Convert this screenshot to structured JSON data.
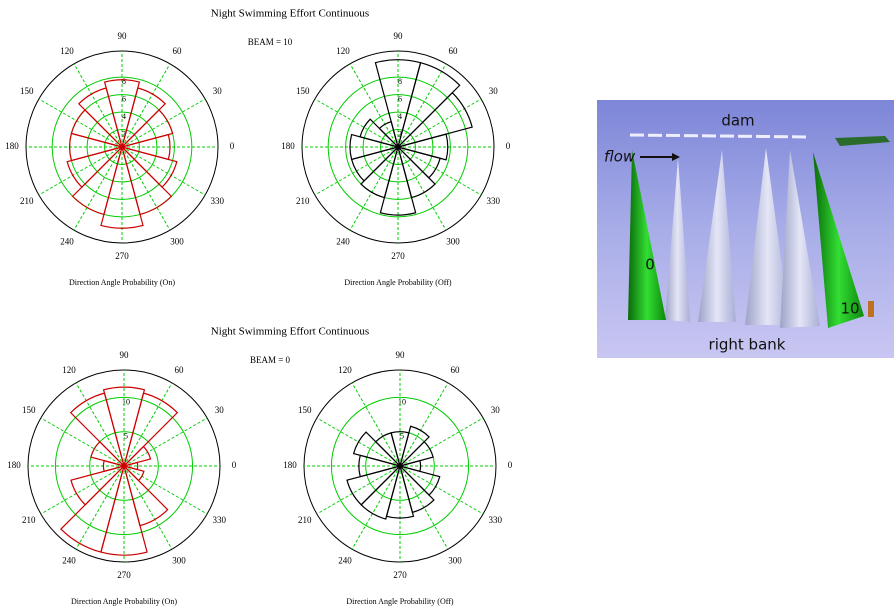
{
  "chart_data": [
    {
      "type": "polar",
      "title": "Night Swimming Effort Continuous",
      "annotation": "BEAM = 10",
      "xlabel": "Direction Angle Probability (On)",
      "color": "#cc0000",
      "grid_color": "#00cc00",
      "categories": [
        0,
        30,
        60,
        90,
        120,
        150,
        180,
        210,
        240,
        270,
        300,
        330
      ],
      "values": [
        5.5,
        6,
        7,
        7.7,
        7,
        6,
        6,
        6.5,
        8,
        9.3,
        8,
        6.5
      ],
      "rlim": [
        0,
        11
      ],
      "rticks": [
        2,
        4,
        6,
        8
      ]
    },
    {
      "type": "polar",
      "xlabel": "Direction Angle Probability (Off)",
      "color": "#000000",
      "grid_color": "#00cc00",
      "categories": [
        0,
        30,
        60,
        90,
        120,
        150,
        180,
        210,
        240,
        270,
        300,
        330
      ],
      "values": [
        5.7,
        8.8,
        10,
        10,
        3,
        4.5,
        5.5,
        5.5,
        6,
        7.8,
        6,
        5
      ],
      "rlim": [
        0,
        11
      ],
      "rticks": [
        2,
        4,
        6,
        8
      ]
    },
    {
      "type": "polar",
      "title": "Night Swimming Effort Continuous",
      "annotation": "BEAM = 0",
      "xlabel": "Direction Angle Probability (On)",
      "color": "#cc0000",
      "grid_color": "#00cc00",
      "categories": [
        0,
        30,
        60,
        90,
        120,
        150,
        180,
        210,
        240,
        270,
        300,
        330
      ],
      "values": [
        2,
        4,
        11,
        11.5,
        11,
        5,
        3,
        8,
        13,
        13,
        9,
        3
      ],
      "rlim": [
        0,
        14
      ],
      "rticks": [
        5,
        10
      ]
    },
    {
      "type": "polar",
      "xlabel": "Direction Angle Probability (Off)",
      "color": "#000000",
      "grid_color": "#00cc00",
      "categories": [
        0,
        30,
        60,
        90,
        120,
        150,
        180,
        210,
        240,
        270,
        300,
        330
      ],
      "values": [
        3,
        5,
        6,
        5,
        5,
        7,
        6,
        8,
        8,
        7.6,
        7,
        6
      ],
      "rlim": [
        0,
        14
      ],
      "rticks": [
        5,
        10
      ]
    }
  ],
  "photo": {
    "labels": {
      "dam": "dam",
      "flow": "flow",
      "left": "0",
      "right": "10",
      "bank": "right bank"
    }
  }
}
